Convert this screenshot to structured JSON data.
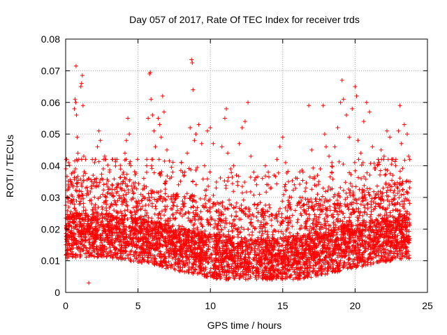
{
  "chart_data": {
    "type": "scatter",
    "title": "Day 057 of 2017, Rate Of TEC Index for receiver trds",
    "xlabel": "GPS time / hours",
    "ylabel": "ROTI / TECUs",
    "xlim": [
      0,
      25
    ],
    "ylim": [
      0,
      0.08
    ],
    "x_ticks": [
      0,
      5,
      10,
      15,
      20,
      25
    ],
    "x_tick_labels": [
      "0",
      "5",
      "10",
      "15",
      "20",
      "25"
    ],
    "y_ticks": [
      0,
      0.01,
      0.02,
      0.03,
      0.04,
      0.05,
      0.06,
      0.07,
      0.08
    ],
    "y_tick_labels": [
      "0",
      "0.01",
      "0.02",
      "0.03",
      "0.04",
      "0.05",
      "0.06",
      "0.07",
      "0.08"
    ],
    "grid": true,
    "marker": "plus",
    "color": "#ff0000",
    "series": [
      {
        "points": [
          [
            0.05,
            0.012
          ],
          [
            0.1,
            0.018
          ],
          [
            0.15,
            0.03
          ],
          [
            0.2,
            0.041
          ],
          [
            0.3,
            0.022
          ],
          [
            0.35,
            0.035
          ],
          [
            0.45,
            0.015
          ],
          [
            0.5,
            0.038
          ],
          [
            0.6,
            0.058
          ],
          [
            0.65,
            0.061
          ],
          [
            0.7,
            0.06
          ],
          [
            0.75,
            0.056
          ],
          [
            0.72,
            0.0715
          ],
          [
            0.8,
            0.049
          ],
          [
            0.85,
            0.044
          ],
          [
            0.9,
            0.03
          ],
          [
            0.95,
            0.025
          ],
          [
            1.05,
            0.065
          ],
          [
            1.1,
            0.066
          ],
          [
            1.15,
            0.0685
          ],
          [
            1.2,
            0.059
          ],
          [
            1.25,
            0.043
          ],
          [
            1.4,
            0.033
          ],
          [
            1.5,
            0.02
          ],
          [
            1.6,
            0.003
          ],
          [
            1.7,
            0.015
          ],
          [
            1.8,
            0.028
          ],
          [
            1.9,
            0.037
          ],
          [
            2.0,
            0.041
          ],
          [
            2.2,
            0.046
          ],
          [
            2.3,
            0.051
          ],
          [
            2.4,
            0.048
          ],
          [
            2.5,
            0.036
          ],
          [
            2.6,
            0.039
          ],
          [
            2.7,
            0.043
          ],
          [
            2.8,
            0.03
          ],
          [
            3.0,
            0.025
          ],
          [
            3.2,
            0.034
          ],
          [
            3.4,
            0.021
          ],
          [
            3.6,
            0.029
          ],
          [
            3.8,
            0.033
          ],
          [
            4.0,
            0.038
          ],
          [
            4.1,
            0.044
          ],
          [
            4.2,
            0.048
          ],
          [
            4.3,
            0.055
          ],
          [
            4.4,
            0.05
          ],
          [
            4.5,
            0.04
          ],
          [
            4.6,
            0.032
          ],
          [
            4.8,
            0.022
          ],
          [
            5.0,
            0.026
          ],
          [
            5.2,
            0.031
          ],
          [
            5.4,
            0.036
          ],
          [
            5.6,
            0.04
          ],
          [
            5.7,
            0.055
          ],
          [
            5.8,
            0.069
          ],
          [
            5.85,
            0.0695
          ],
          [
            5.9,
            0.061
          ],
          [
            6.0,
            0.056
          ],
          [
            6.1,
            0.051
          ],
          [
            6.2,
            0.046
          ],
          [
            6.4,
            0.055
          ],
          [
            6.5,
            0.053
          ],
          [
            6.6,
            0.049
          ],
          [
            6.7,
            0.062
          ],
          [
            6.8,
            0.057
          ],
          [
            7.0,
            0.045
          ],
          [
            7.2,
            0.036
          ],
          [
            7.4,
            0.038
          ],
          [
            7.6,
            0.03
          ],
          [
            7.8,
            0.034
          ],
          [
            8.0,
            0.041
          ],
          [
            8.2,
            0.037
          ],
          [
            8.4,
            0.044
          ],
          [
            8.6,
            0.052
          ],
          [
            8.7,
            0.0735
          ],
          [
            8.75,
            0.0725
          ],
          [
            8.8,
            0.064
          ],
          [
            8.9,
            0.048
          ],
          [
            9.0,
            0.05
          ],
          [
            9.2,
            0.053
          ],
          [
            9.4,
            0.047
          ],
          [
            9.6,
            0.04
          ],
          [
            9.8,
            0.051
          ],
          [
            10.0,
            0.052
          ],
          [
            10.2,
            0.047
          ],
          [
            10.4,
            0.033
          ],
          [
            10.6,
            0.028
          ],
          [
            10.8,
            0.046
          ],
          [
            11.0,
            0.055
          ],
          [
            11.1,
            0.058
          ],
          [
            11.2,
            0.044
          ],
          [
            11.4,
            0.039
          ],
          [
            11.6,
            0.04
          ],
          [
            11.8,
            0.037
          ],
          [
            12.0,
            0.047
          ],
          [
            12.2,
            0.052
          ],
          [
            12.4,
            0.054
          ],
          [
            12.6,
            0.06
          ],
          [
            12.8,
            0.043
          ],
          [
            13.0,
            0.038
          ],
          [
            13.2,
            0.034
          ],
          [
            13.4,
            0.031
          ],
          [
            13.6,
            0.036
          ],
          [
            13.8,
            0.04
          ],
          [
            14.0,
            0.038
          ],
          [
            14.2,
            0.033
          ],
          [
            14.4,
            0.037
          ],
          [
            14.6,
            0.042
          ],
          [
            14.8,
            0.046
          ],
          [
            15.0,
            0.049
          ],
          [
            15.2,
            0.041
          ],
          [
            15.4,
            0.035
          ],
          [
            15.6,
            0.03
          ],
          [
            15.8,
            0.034
          ],
          [
            16.0,
            0.036
          ],
          [
            16.2,
            0.03
          ],
          [
            16.4,
            0.038
          ],
          [
            16.6,
            0.033
          ],
          [
            16.8,
            0.059
          ],
          [
            17.0,
            0.045
          ],
          [
            17.2,
            0.036
          ],
          [
            17.4,
            0.037
          ],
          [
            17.6,
            0.039
          ],
          [
            17.8,
            0.059
          ],
          [
            17.9,
            0.05
          ],
          [
            18.0,
            0.046
          ],
          [
            18.2,
            0.043
          ],
          [
            18.4,
            0.041
          ],
          [
            18.6,
            0.046
          ],
          [
            18.8,
            0.052
          ],
          [
            19.0,
            0.06
          ],
          [
            19.1,
            0.067
          ],
          [
            19.2,
            0.061
          ],
          [
            19.4,
            0.056
          ],
          [
            19.6,
            0.049
          ],
          [
            19.8,
            0.058
          ],
          [
            20.0,
            0.065
          ],
          [
            20.1,
            0.062
          ],
          [
            20.2,
            0.048
          ],
          [
            20.4,
            0.044
          ],
          [
            20.6,
            0.054
          ],
          [
            20.8,
            0.06
          ],
          [
            21.0,
            0.057
          ],
          [
            21.2,
            0.046
          ],
          [
            21.4,
            0.039
          ],
          [
            21.6,
            0.042
          ],
          [
            21.8,
            0.045
          ],
          [
            22.0,
            0.043
          ],
          [
            22.2,
            0.051
          ],
          [
            22.4,
            0.049
          ],
          [
            22.6,
            0.037
          ],
          [
            22.8,
            0.04
          ],
          [
            23.0,
            0.051
          ],
          [
            23.1,
            0.059
          ],
          [
            23.2,
            0.047
          ],
          [
            23.4,
            0.053
          ],
          [
            23.6,
            0.05
          ],
          [
            23.7,
            0.043
          ],
          [
            23.8,
            0.035
          ]
        ]
      }
    ],
    "density_band": {
      "note_hidden": "",
      "x_start": 0,
      "x_end": 23.8
    }
  }
}
